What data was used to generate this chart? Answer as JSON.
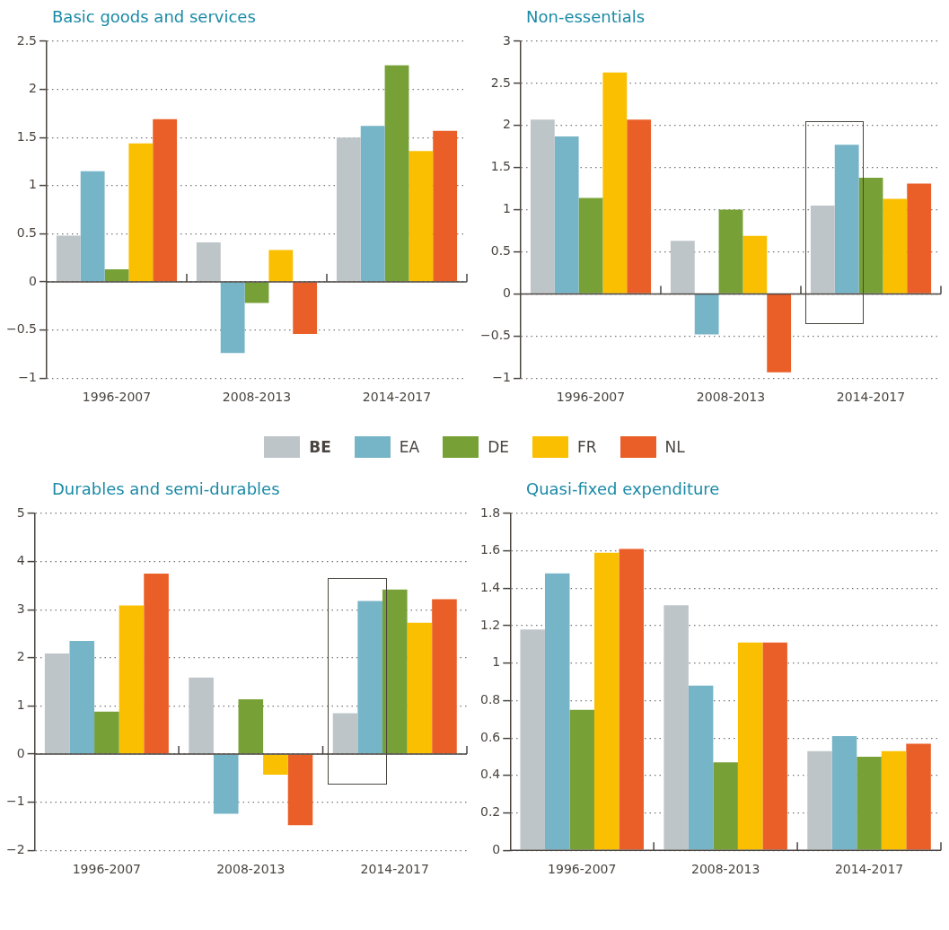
{
  "chart_data": [
    {
      "type": "bar",
      "title": "Basic goods and services",
      "categories": [
        "1996-2007",
        "2008-2013",
        "2014-2017"
      ],
      "ylim": [
        -1,
        2.5
      ],
      "yticks": [
        -1,
        -0.5,
        0,
        0.5,
        1,
        1.5,
        2,
        2.5
      ],
      "grid": "y",
      "legend": "bottom",
      "series": [
        {
          "name": "BE",
          "color": "#bec5c8",
          "values": [
            0.48,
            0.41,
            1.5
          ]
        },
        {
          "name": "EA",
          "color": "#76b4c8",
          "values": [
            1.15,
            -0.74,
            1.62
          ]
        },
        {
          "name": "DE",
          "color": "#77a136",
          "values": [
            0.13,
            -0.22,
            2.25
          ]
        },
        {
          "name": "FR",
          "color": "#fabf00",
          "values": [
            1.44,
            0.33,
            1.36
          ]
        },
        {
          "name": "NL",
          "color": "#ea5f28",
          "values": [
            1.69,
            -0.54,
            1.57
          ]
        }
      ]
    },
    {
      "type": "bar",
      "title": "Non-essentials",
      "categories": [
        "1996-2007",
        "2008-2013",
        "2014-2017"
      ],
      "ylim": [
        -1,
        3
      ],
      "yticks": [
        -1,
        -0.5,
        0,
        0.5,
        1,
        1.5,
        2,
        2.5,
        3
      ],
      "grid": "y",
      "series": [
        {
          "color": "#bec5c8",
          "values": [
            2.07,
            0.63,
            1.05
          ]
        },
        {
          "color": "#76b4c8",
          "values": [
            1.87,
            -0.48,
            1.77
          ]
        },
        {
          "color": "#77a136",
          "values": [
            1.14,
            1.0,
            1.38
          ]
        },
        {
          "color": "#fabf00",
          "values": [
            2.63,
            0.69,
            1.13
          ]
        },
        {
          "color": "#ea5f28",
          "values": [
            2.07,
            -0.93,
            1.31
          ]
        }
      ]
    },
    {
      "type": "bar",
      "title": "Durables and semi-durables",
      "categories": [
        "1996-2007",
        "2008-2013",
        "2014-2017"
      ],
      "ylim": [
        -2,
        5
      ],
      "yticks": [
        -2,
        -1,
        0,
        1,
        2,
        3,
        4,
        5
      ],
      "grid": "y",
      "series": [
        {
          "color": "#bec5c8",
          "values": [
            2.09,
            1.59,
            0.85
          ]
        },
        {
          "color": "#76b4c8",
          "values": [
            2.35,
            -1.24,
            3.18
          ]
        },
        {
          "color": "#77a136",
          "values": [
            0.88,
            1.14,
            3.42
          ]
        },
        {
          "color": "#fabf00",
          "values": [
            3.09,
            -0.43,
            2.73
          ]
        },
        {
          "color": "#ea5f28",
          "values": [
            3.75,
            -1.48,
            3.22
          ]
        }
      ]
    },
    {
      "type": "bar",
      "title": "Quasi-fixed expenditure",
      "categories": [
        "1996-2007",
        "2008-2013",
        "2014-2017"
      ],
      "ylim": [
        0,
        1.8
      ],
      "yticks": [
        0,
        0.2,
        0.4,
        0.6,
        0.8,
        1,
        1.2,
        1.4,
        1.6,
        1.8
      ],
      "grid": "y",
      "series": [
        {
          "color": "#bec5c8",
          "values": [
            1.18,
            1.31,
            0.53
          ]
        },
        {
          "color": "#76b4c8",
          "values": [
            1.48,
            0.88,
            0.61
          ]
        },
        {
          "color": "#77a136",
          "values": [
            0.75,
            0.47,
            0.5
          ]
        },
        {
          "color": "#fabf00",
          "values": [
            1.59,
            1.11,
            0.53
          ]
        },
        {
          "color": "#ea5f28",
          "values": [
            1.61,
            1.11,
            0.57
          ]
        }
      ]
    }
  ]
}
